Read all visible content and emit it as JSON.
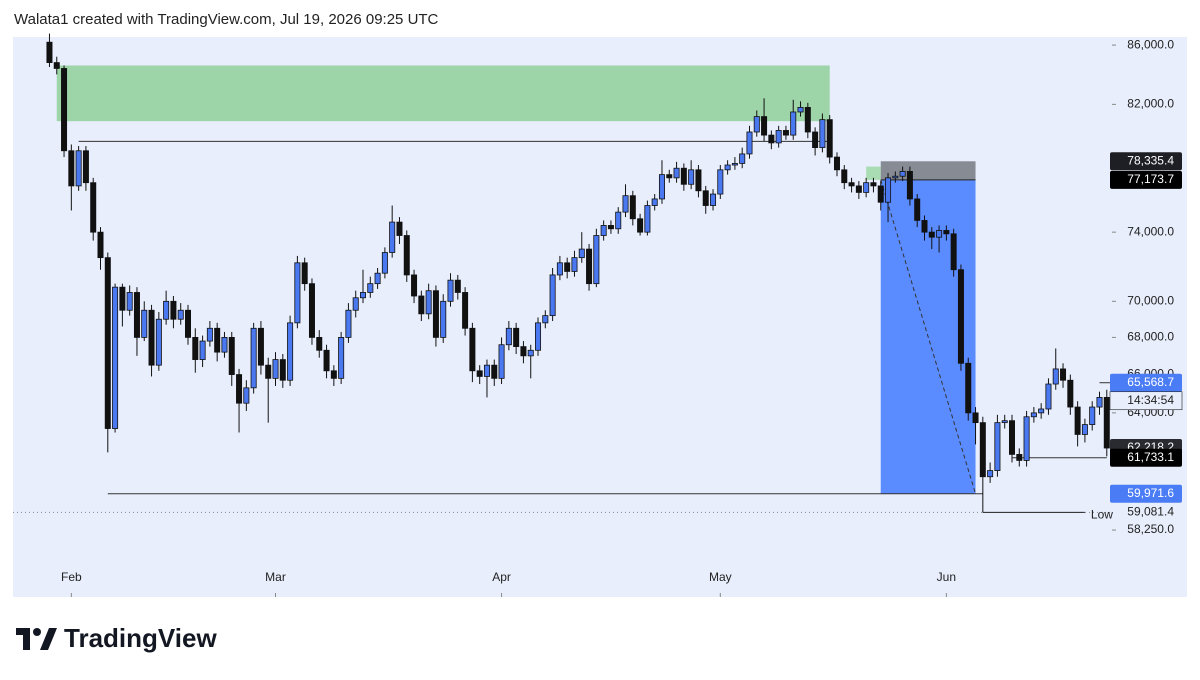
{
  "header": "Walata1 created with TradingView.com, Jul 19, 2026 09:25 UTC",
  "footer": {
    "brand": "TradingView"
  },
  "chart_data": {
    "type": "candlestick",
    "log_scale": true,
    "grid": false,
    "background": "#e8eefc",
    "up_color": "#4a78f0",
    "down_color": "#111111",
    "xlim": [
      -5,
      156
    ],
    "ylim": [
      55200,
      86560
    ],
    "xticks": [
      {
        "value": 3,
        "label": "Feb"
      },
      {
        "value": 31,
        "label": "Mar"
      },
      {
        "value": 62,
        "label": "Apr"
      },
      {
        "value": 92,
        "label": "May"
      },
      {
        "value": 123,
        "label": "Jun"
      }
    ],
    "yticks": [
      {
        "value": 86000,
        "label": "86,000.0"
      },
      {
        "value": 82000,
        "label": "82,000.0"
      },
      {
        "value": 74000,
        "label": "74,000.0"
      },
      {
        "value": 70000,
        "label": "70,000.0"
      },
      {
        "value": 68000,
        "label": "68,000.0"
      },
      {
        "value": 66000,
        "label": "66,000.0"
      },
      {
        "value": 64000,
        "label": "64,000.0"
      },
      {
        "value": 58250,
        "label": "58,250.0"
      }
    ],
    "open": [
      86200,
      84800,
      84400,
      79000,
      76800,
      79000,
      77000,
      74000,
      72500,
      63200,
      70800,
      69500,
      70500,
      68000,
      69500,
      66500,
      69000,
      70000,
      69000,
      69500,
      68000,
      66800,
      67800,
      68500,
      67200,
      68000,
      66000,
      64500,
      65300,
      68500,
      66500,
      65800,
      66800,
      65700,
      68800,
      72200,
      71000,
      68000,
      67300,
      66200,
      65800,
      68000,
      69500,
      70200,
      70500,
      71000,
      71600,
      72800,
      74600,
      73800,
      71500,
      70300,
      69300,
      70600,
      68000,
      70000,
      71200,
      70500,
      68500,
      66200,
      65900,
      66500,
      65800,
      67600,
      68500,
      67500,
      67000,
      67300,
      68800,
      69200,
      71500,
      72200,
      71700,
      72500,
      73000,
      71000,
      73800,
      74400,
      74200,
      75200,
      76200,
      74800,
      74000,
      75600,
      76000,
      77500,
      77300,
      77900,
      76900,
      77800,
      76500,
      75600,
      76300,
      77800,
      78100,
      78200,
      78800,
      80200,
      81200,
      80000,
      79500,
      80300,
      80000,
      81500,
      81800,
      80200,
      79200,
      81000,
      78600,
      77800,
      77000,
      76800,
      76400,
      77000,
      76800,
      75800,
      77300,
      77400,
      77700,
      76000,
      74700,
      74000,
      73700,
      74100,
      73900,
      71800,
      66600,
      64000,
      63500,
      60800,
      61100,
      63500,
      63600,
      61900,
      61600,
      63800,
      64000,
      64200,
      65500,
      66300,
      65700,
      64300,
      62900,
      63400,
      64300,
      64800
    ],
    "high": [
      86800,
      85200,
      84600,
      79400,
      79300,
      79300,
      77300,
      74300,
      72800,
      71000,
      71000,
      70900,
      70800,
      70000,
      69800,
      69400,
      70600,
      70300,
      69900,
      69800,
      68500,
      68100,
      68900,
      68800,
      68300,
      68300,
      66300,
      65700,
      68800,
      68900,
      66900,
      67200,
      67100,
      69200,
      72600,
      72500,
      71300,
      68400,
      67600,
      66500,
      68300,
      69900,
      70600,
      71800,
      71400,
      71900,
      73100,
      75600,
      74900,
      74100,
      71800,
      70600,
      71000,
      70900,
      70400,
      71600,
      71500,
      70800,
      68800,
      66500,
      66800,
      66800,
      68000,
      68900,
      68800,
      67800,
      67600,
      69100,
      69500,
      71900,
      72600,
      72500,
      72900,
      74000,
      73300,
      74200,
      74700,
      74700,
      75500,
      76900,
      76500,
      75100,
      75900,
      76300,
      78400,
      77800,
      78300,
      78200,
      78400,
      78100,
      76800,
      76600,
      78100,
      78400,
      78600,
      79200,
      80600,
      81600,
      82400,
      80300,
      80600,
      80600,
      82300,
      82200,
      82100,
      80500,
      81400,
      81300,
      78900,
      78100,
      77300,
      77100,
      77300,
      77300,
      77100,
      77600,
      77700,
      78000,
      78000,
      76300,
      75000,
      74300,
      74400,
      74400,
      74200,
      72100,
      66900,
      64300,
      63800,
      61500,
      63900,
      63900,
      63900,
      62200,
      64100,
      64300,
      64500,
      65800,
      67400,
      66600,
      66000,
      64600,
      63700,
      64600,
      65100,
      65200
    ],
    "low": [
      84500,
      84000,
      78600,
      75300,
      76500,
      76500,
      73500,
      71800,
      62000,
      63000,
      68600,
      69200,
      67000,
      67800,
      65900,
      66200,
      68700,
      68500,
      68700,
      67600,
      66100,
      66400,
      67500,
      66700,
      66900,
      65400,
      63000,
      64100,
      65000,
      66000,
      63500,
      65400,
      65300,
      65400,
      68500,
      70600,
      67600,
      66900,
      65800,
      65400,
      65500,
      67700,
      69100,
      69900,
      70200,
      70700,
      71300,
      72500,
      73300,
      71100,
      69900,
      68900,
      69000,
      67500,
      67700,
      69700,
      70100,
      68100,
      65600,
      65500,
      64800,
      65400,
      65500,
      67300,
      67100,
      66600,
      65800,
      67000,
      68500,
      68900,
      71200,
      71300,
      71400,
      72200,
      70600,
      70800,
      73500,
      73900,
      73900,
      74900,
      74400,
      73800,
      73800,
      75300,
      75700,
      77000,
      77000,
      76500,
      76600,
      76100,
      75100,
      75300,
      76000,
      77500,
      77800,
      77900,
      78500,
      79900,
      79600,
      79100,
      79200,
      79700,
      79700,
      81200,
      79800,
      78700,
      78900,
      78200,
      77400,
      76600,
      76400,
      76000,
      76100,
      76400,
      75300,
      74600,
      77000,
      77100,
      75600,
      74300,
      73500,
      73000,
      72800,
      73500,
      71400,
      66200,
      63600,
      62400,
      59081.4,
      60500,
      60800,
      63200,
      61500,
      61300,
      61300,
      63500,
      63700,
      63900,
      65200,
      65300,
      63900,
      62300,
      62500,
      63100,
      63900,
      61800
    ],
    "close": [
      84800,
      84400,
      79000,
      76800,
      79000,
      77000,
      74000,
      72500,
      63200,
      70800,
      69500,
      70500,
      68000,
      69500,
      66500,
      69000,
      70000,
      69000,
      69500,
      68000,
      66800,
      67800,
      68500,
      67200,
      68000,
      66000,
      64500,
      65300,
      68500,
      66500,
      65800,
      66800,
      65700,
      68800,
      72200,
      71000,
      68000,
      67300,
      66200,
      65800,
      68000,
      69500,
      70200,
      70500,
      71000,
      71600,
      72800,
      74600,
      73800,
      71500,
      70300,
      69300,
      70600,
      68000,
      70000,
      71200,
      70500,
      68500,
      66200,
      65900,
      66500,
      65800,
      67600,
      68500,
      67500,
      67000,
      67300,
      68800,
      69200,
      71500,
      72200,
      71700,
      72500,
      73000,
      71000,
      73800,
      74400,
      74200,
      75200,
      76200,
      74800,
      74000,
      75600,
      76000,
      77500,
      77300,
      77900,
      76900,
      77800,
      76500,
      75600,
      76300,
      77800,
      78100,
      78200,
      78800,
      80200,
      81200,
      80000,
      79500,
      80300,
      80000,
      81500,
      81800,
      80200,
      79200,
      81000,
      78600,
      77800,
      77000,
      76800,
      76400,
      77000,
      76800,
      75800,
      77300,
      77400,
      77700,
      76000,
      74700,
      74000,
      73700,
      74100,
      73900,
      71800,
      66600,
      64000,
      63500,
      60800,
      61100,
      63500,
      63600,
      61900,
      61600,
      63800,
      64000,
      64200,
      65500,
      66300,
      65700,
      64300,
      62900,
      63400,
      64300,
      64800,
      62218.2
    ],
    "zones": [
      {
        "top": 84600,
        "bottom": 80900,
        "start": 1,
        "end": 107,
        "color": "#9dd4a8"
      },
      {
        "top": 78000,
        "bottom": 77173.7,
        "start": 112,
        "end": 114,
        "color": "#a9dcb2"
      }
    ],
    "lines": [
      {
        "value": 79600,
        "start": 4,
        "end": 107,
        "color": "#333333"
      },
      {
        "value": 59971.6,
        "start": 8,
        "end": 128,
        "color": "#333333"
      },
      {
        "value": 61733.1,
        "start": 132,
        "end": 145,
        "color": "#333333"
      },
      {
        "value": 65568.7,
        "start": 144,
        "end": 146,
        "color": "#333333"
      }
    ],
    "position": {
      "entry": 77173.7,
      "stop": 78335.4,
      "target": 59971.6,
      "start": 114,
      "end": 127,
      "stop_color": "#868b94",
      "target_color": "#5b8cff"
    },
    "low_marker": {
      "value": 59081.4,
      "label": "Low",
      "start": 128,
      "end": 142
    },
    "price_labels": [
      {
        "value": 78335.4,
        "label": "78,335.4",
        "bg": "#1e1f24",
        "fg": "#ffffff"
      },
      {
        "value": 77173.7,
        "label": "77,173.7",
        "bg": "#000000",
        "fg": "#ffffff"
      },
      {
        "value": 65568.7,
        "label": "65,568.7",
        "bg": "#4a7cf5",
        "fg": "#ffffff"
      },
      {
        "value": 62218.2,
        "label": "62,218.2",
        "bg": "#2a2b30",
        "fg": "#ffffff"
      },
      {
        "value": 61733.1,
        "label": "61,733.1",
        "bg": "#000000",
        "fg": "#ffffff"
      },
      {
        "value": 59971.6,
        "label": "59,971.6",
        "bg": "#4a7cf5",
        "fg": "#ffffff"
      },
      {
        "value": 59081.4,
        "label": "59,081.4",
        "bg": "none",
        "fg": "#222222"
      }
    ],
    "countdown": "14:34:54"
  }
}
